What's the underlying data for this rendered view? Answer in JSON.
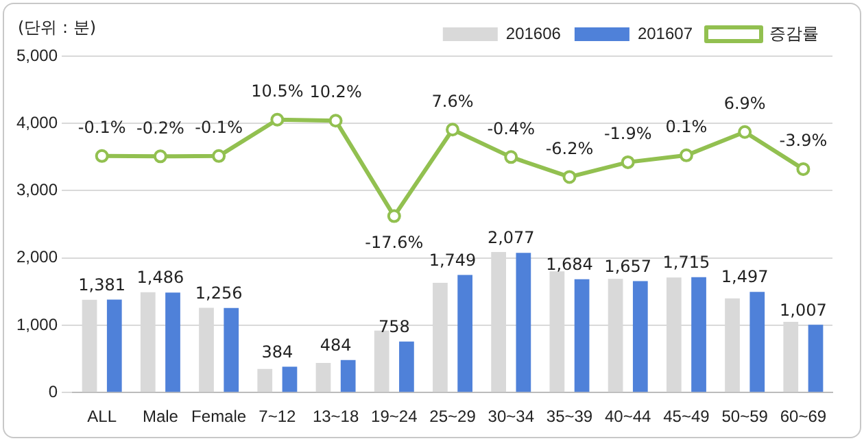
{
  "chart_data": {
    "type": "bar",
    "ylabel": "(단위 : 분)",
    "categories": [
      "ALL",
      "Male",
      "Female",
      "7~12",
      "13~18",
      "19~24",
      "25~29",
      "30~34",
      "35~39",
      "40~44",
      "45~49",
      "50~59",
      "60~69"
    ],
    "series": [
      {
        "name": "201606",
        "color": "#d9d9d9",
        "values": [
          1380,
          1490,
          1260,
          350,
          440,
          920,
          1630,
          2090,
          1800,
          1690,
          1710,
          1400,
          1050
        ]
      },
      {
        "name": "201607",
        "color": "#4f81d9",
        "values": [
          1381,
          1486,
          1256,
          384,
          484,
          758,
          1749,
          2077,
          1684,
          1657,
          1715,
          1497,
          1007
        ],
        "value_labels": [
          "1,381",
          "1,486",
          "1,256",
          "384",
          "484",
          "758",
          "1,749",
          "2,077",
          "1,684",
          "1,657",
          "1,715",
          "1,497",
          "1,007"
        ]
      },
      {
        "name": "증감률",
        "type": "line",
        "axis": "y2",
        "color": "#92c050",
        "values": [
          -0.1,
          -0.2,
          -0.1,
          10.5,
          10.2,
          -17.6,
          7.6,
          -0.4,
          -6.2,
          -1.9,
          0.1,
          6.9,
          -3.9
        ],
        "value_labels": [
          "-0.1%",
          "-0.2%",
          "-0.1%",
          "10.5%",
          "10.2%",
          "-17.6%",
          "7.6%",
          "-0.4%",
          "-6.2%",
          "-1.9%",
          "0.1%",
          "6.9%",
          "-3.9%"
        ]
      }
    ],
    "ylim": [
      0,
      5000
    ],
    "yticks": [
      0,
      {
        "value": 1000,
        "label": "1,000"
      },
      {
        "value": 2000,
        "label": "2,000"
      },
      {
        "value": 3000,
        "label": "3,000"
      },
      {
        "value": 4000,
        "label": "4,000"
      },
      {
        "value": 5000,
        "label": "5,000"
      }
    ],
    "y2lim": [
      -69,
      29
    ],
    "grid": "y",
    "legend": "top right",
    "marker": "circle",
    "line_style": "solid"
  }
}
